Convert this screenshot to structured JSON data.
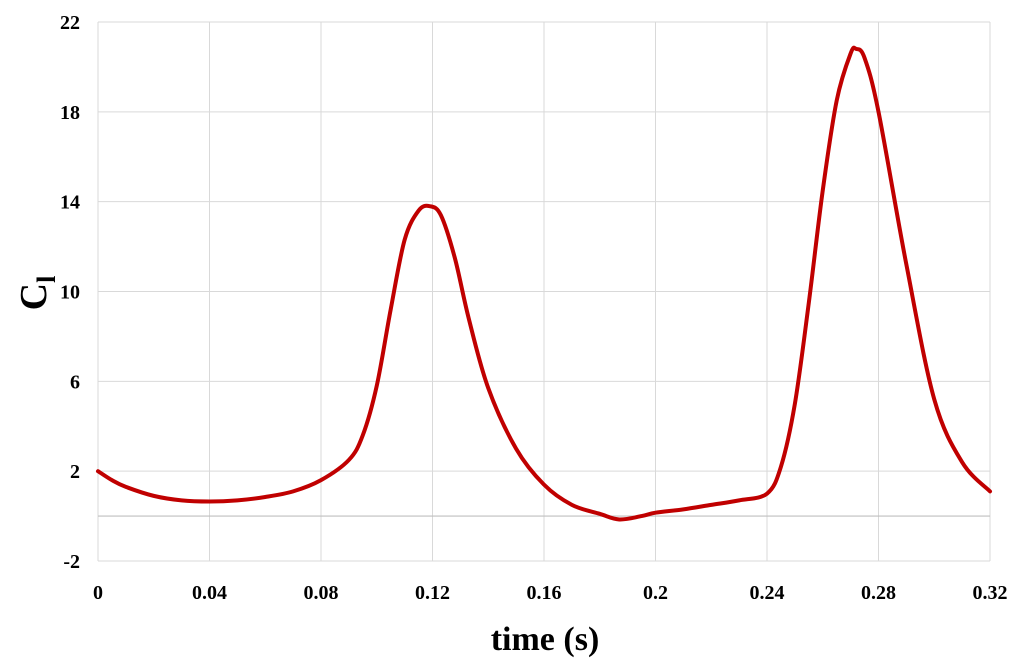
{
  "chart_data": {
    "type": "line",
    "title": "",
    "xlabel": "time (s)",
    "ylabel": "C",
    "ylabel_subscript": "l",
    "xlim": [
      0,
      0.32
    ],
    "ylim": [
      -2,
      22
    ],
    "xticks": [
      0,
      0.04,
      0.08,
      0.12,
      0.16,
      0.2,
      0.24,
      0.28,
      0.32
    ],
    "xtick_labels": [
      "0",
      "0.04",
      "0.08",
      "0.12",
      "0.16",
      "0.2",
      "0.24",
      "0.28",
      "0.32"
    ],
    "yticks": [
      -2,
      2,
      6,
      10,
      14,
      18,
      22
    ],
    "ytick_labels": [
      "-2",
      "2",
      "6",
      "10",
      "14",
      "18",
      "22"
    ],
    "grid": true,
    "legend": "none",
    "colors": {
      "series": "#c00000",
      "grid": "#d9d9d9",
      "zero_line": "#bfbfbf",
      "text": "#000000"
    },
    "series": [
      {
        "x": [
          0,
          0.005,
          0.01,
          0.02,
          0.03,
          0.04,
          0.05,
          0.06,
          0.07,
          0.08,
          0.09,
          0.095,
          0.1,
          0.105,
          0.11,
          0.115,
          0.119,
          0.123,
          0.128,
          0.133,
          0.14,
          0.15,
          0.16,
          0.17,
          0.18,
          0.187,
          0.195,
          0.2,
          0.21,
          0.22,
          0.23,
          0.24,
          0.245,
          0.25,
          0.255,
          0.26,
          0.265,
          0.27,
          0.272,
          0.275,
          0.28,
          0.29,
          0.3,
          0.31,
          0.32
        ],
        "y": [
          2.0,
          1.6,
          1.3,
          0.9,
          0.7,
          0.65,
          0.7,
          0.85,
          1.1,
          1.6,
          2.5,
          3.6,
          5.8,
          9.2,
          12.3,
          13.6,
          13.8,
          13.4,
          11.5,
          8.8,
          5.7,
          3.0,
          1.4,
          0.5,
          0.1,
          -0.15,
          0.0,
          0.15,
          0.3,
          0.5,
          0.7,
          1.0,
          2.2,
          5.0,
          9.5,
          14.5,
          18.5,
          20.6,
          20.8,
          20.4,
          18.0,
          11.2,
          5.2,
          2.4,
          1.1
        ]
      }
    ]
  }
}
